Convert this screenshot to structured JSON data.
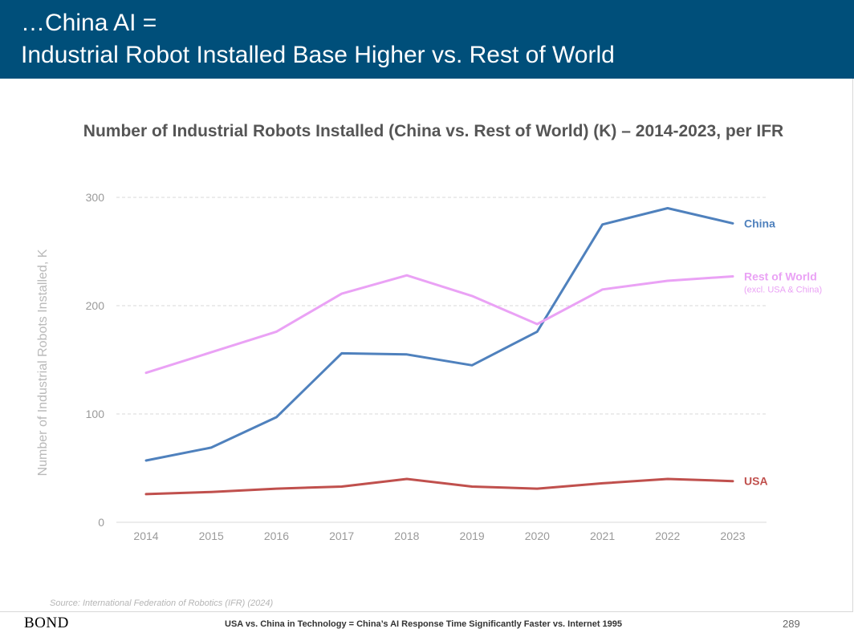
{
  "header": {
    "title_line1": "…China AI =",
    "title_line2": "Industrial Robot Installed Base Higher vs. Rest of World"
  },
  "chart_data": {
    "type": "line",
    "title": "Number of Industrial Robots Installed (China vs. Rest of World) (K) – 2014-2023, per IFR",
    "xlabel": "",
    "ylabel": "Number of Industrial Robots Installed, K",
    "x": [
      "2014",
      "2015",
      "2016",
      "2017",
      "2018",
      "2019",
      "2020",
      "2021",
      "2022",
      "2023"
    ],
    "ylim": [
      0,
      300
    ],
    "yticks": [
      0,
      100,
      200,
      300
    ],
    "grid": true,
    "series": [
      {
        "name": "China",
        "sublabel": "",
        "color": "#4f81bd",
        "values": [
          57,
          69,
          97,
          156,
          155,
          145,
          176,
          275,
          290,
          276
        ]
      },
      {
        "name": "Rest of World",
        "sublabel": "(excl. USA & China)",
        "color": "#eaa2f5",
        "values": [
          138,
          157,
          176,
          211,
          228,
          209,
          183,
          215,
          223,
          227
        ]
      },
      {
        "name": "USA",
        "sublabel": "",
        "color": "#c0504d",
        "values": [
          26,
          28,
          31,
          33,
          40,
          33,
          31,
          36,
          40,
          38
        ]
      }
    ]
  },
  "footer": {
    "source": "Source: International Federation of Robotics (IFR) (2024)",
    "logo": "BOND",
    "caption": "USA vs. China in Technology = China’s AI Response Time Significantly Faster vs. Internet 1995",
    "page_number": "289"
  }
}
